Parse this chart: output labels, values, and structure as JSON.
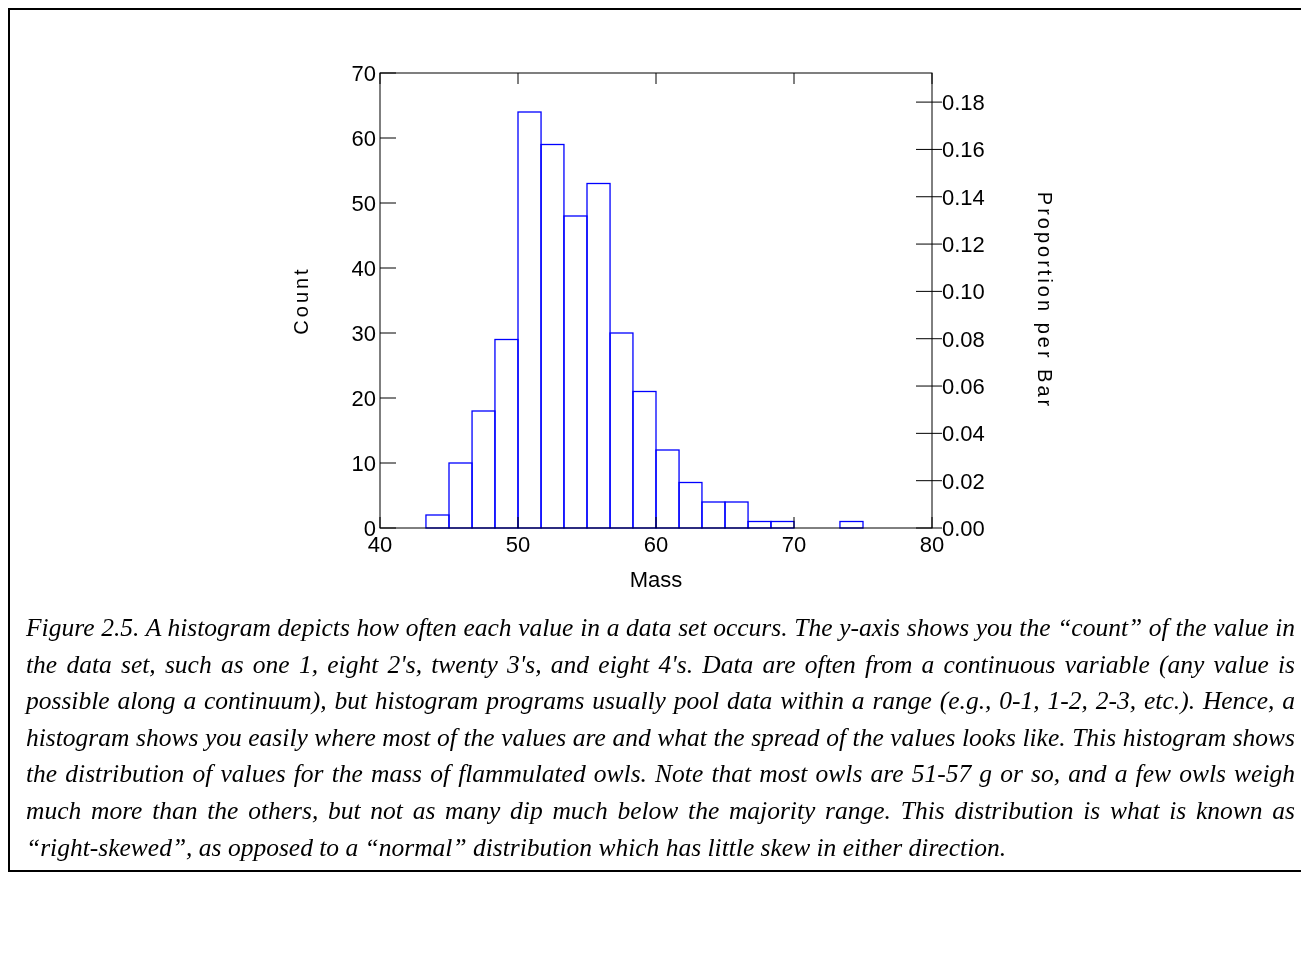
{
  "chart_data": {
    "type": "histogram",
    "xlabel": "Mass",
    "ylabel": "Count",
    "y2label": "Proportion per Bar",
    "bins": [
      40,
      41.67,
      43.33,
      45,
      46.67,
      48.33,
      50,
      51.67,
      53.33,
      55,
      56.67,
      58.33,
      60,
      61.67,
      63.33,
      65,
      66.67,
      68.33,
      70,
      71.67,
      73.33,
      75,
      76.67,
      78.33,
      80
    ],
    "values": [
      0,
      0,
      2,
      10,
      18,
      29,
      64,
      59,
      48,
      53,
      30,
      21,
      12,
      7,
      4,
      4,
      1,
      1,
      0,
      0,
      1,
      0,
      0,
      0
    ],
    "color": "#0000ff",
    "xlim": [
      40,
      80
    ],
    "xticks": [
      40,
      50,
      60,
      70,
      80
    ],
    "ylim": [
      0,
      70
    ],
    "yticks": [
      0,
      10,
      20,
      30,
      40,
      50,
      60,
      70
    ],
    "y2lim": [
      0,
      0.1923
    ],
    "y2ticks": [
      {
        "value": 0,
        "label": "0.00"
      },
      {
        "value": 0.02,
        "label": "0.02"
      },
      {
        "value": 0.04,
        "label": "0.04"
      },
      {
        "value": 0.06,
        "label": "0.06"
      },
      {
        "value": 0.08,
        "label": "0.08"
      },
      {
        "value": 0.1,
        "label": "0.10"
      },
      {
        "value": 0.12,
        "label": "0.12"
      },
      {
        "value": 0.14,
        "label": "0.14"
      },
      {
        "value": 0.16,
        "label": "0.16"
      },
      {
        "value": 0.18,
        "label": "0.18"
      }
    ],
    "grid": false,
    "annotations": [
      "Figure 2.5.  A histogram depicts how often each value in a data set occurs.  The y-axis shows you the “count” of the value in the data set, such as one 1, eight 2's, twenty 3's, and eight 4's.  Data are often from a continuous variable (any value is possible along a continuum), but histogram programs usually pool data within a range (e.g., 0-1, 1-2, 2-3, etc.).  Hence, a histogram shows you easily where most of the values are and what the spread of the values looks like.  This histogram shows the distribution of values for the mass of flammulated owls.  Note that most owls are 51-57 g or so, and a few owls weigh much more than the others, but not as many dip much below the majority range.  This distribution is what is known as “right-skewed”, as opposed to a “normal” distribution which has little skew in either direction."
    ]
  }
}
